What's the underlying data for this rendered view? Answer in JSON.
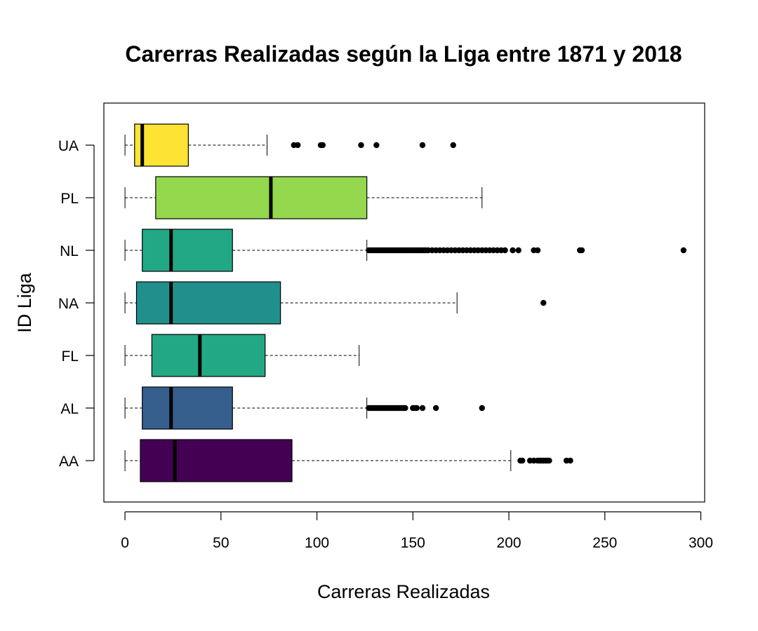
{
  "chart_data": {
    "type": "boxplot",
    "orientation": "horizontal",
    "title": "Carerras Realizadas según la Liga entre 1871 y 2018",
    "xlabel": "Carreras Realizadas",
    "ylabel": "ID Liga",
    "xlim": [
      -11,
      302
    ],
    "xticks": [
      0,
      50,
      100,
      150,
      200,
      250,
      300
    ],
    "grid": false,
    "legend": "none",
    "categories": [
      "AA",
      "AL",
      "FL",
      "NA",
      "NL",
      "PL",
      "UA"
    ],
    "series": [
      {
        "category": "AA",
        "color": "#440154",
        "whisker_low": 0,
        "q1": 8,
        "median": 26,
        "q3": 87,
        "whisker_high": 201,
        "outliers": [
          206,
          207,
          211,
          213,
          215,
          216,
          217,
          218,
          219,
          220,
          221,
          230,
          232
        ]
      },
      {
        "category": "AL",
        "color": "#355E8D",
        "whisker_low": 0,
        "q1": 9,
        "median": 24,
        "q3": 56,
        "whisker_high": 126,
        "outliers": [
          127,
          128,
          129,
          130,
          131,
          132,
          133,
          134,
          135,
          136,
          137,
          138,
          139,
          140,
          141,
          142,
          143,
          144,
          145,
          146,
          150,
          151,
          152,
          155,
          162,
          186
        ]
      },
      {
        "category": "FL",
        "color": "#22A884",
        "whisker_low": 0,
        "q1": 14,
        "median": 39,
        "q3": 73,
        "whisker_high": 122,
        "outliers": []
      },
      {
        "category": "NA",
        "color": "#21908C",
        "whisker_low": 0,
        "q1": 6,
        "median": 24,
        "q3": 81,
        "whisker_high": 173,
        "outliers": [
          218
        ]
      },
      {
        "category": "NL",
        "color": "#22A884",
        "whisker_low": 0,
        "q1": 9,
        "median": 24,
        "q3": 56,
        "whisker_high": 126,
        "outliers": [
          127,
          128,
          129,
          130,
          131,
          132,
          133,
          134,
          135,
          136,
          137,
          138,
          139,
          140,
          141,
          142,
          143,
          144,
          145,
          146,
          147,
          148,
          149,
          150,
          151,
          152,
          153,
          154,
          155,
          156,
          157,
          158,
          160,
          162,
          164,
          166,
          168,
          170,
          172,
          174,
          176,
          178,
          180,
          182,
          184,
          186,
          188,
          190,
          192,
          194,
          196,
          198,
          202,
          205,
          213,
          215,
          237,
          238,
          291
        ]
      },
      {
        "category": "PL",
        "color": "#93D84D",
        "whisker_low": 0,
        "q1": 16,
        "median": 76,
        "q3": 126,
        "whisker_high": 186,
        "outliers": []
      },
      {
        "category": "UA",
        "color": "#FDE333",
        "whisker_low": 0,
        "q1": 5,
        "median": 9,
        "q3": 33,
        "whisker_high": 74,
        "outliers": [
          88,
          90,
          102,
          103,
          123,
          131,
          155,
          171
        ]
      }
    ]
  }
}
